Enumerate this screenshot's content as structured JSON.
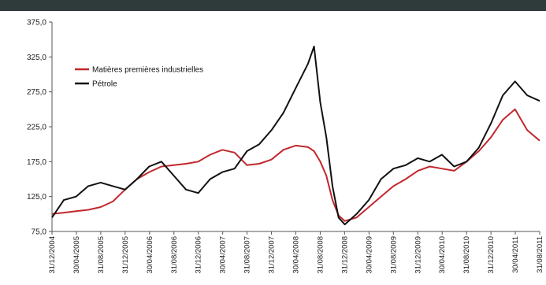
{
  "chart_data": {
    "type": "line",
    "title": "",
    "xlabel": "",
    "ylabel": "",
    "ylim": [
      75,
      375
    ],
    "yticks": [
      75,
      125,
      175,
      225,
      275,
      325,
      375
    ],
    "ytick_labels": [
      "75,0",
      "125,0",
      "175,0",
      "225,0",
      "275,0",
      "325,0",
      "375,0"
    ],
    "xlim": [
      "2004-12-31",
      "2011-08-31"
    ],
    "xtick_labels": [
      "31/12/2004",
      "30/04/2005",
      "31/08/2005",
      "31/12/2005",
      "30/04/2006",
      "31/08/2006",
      "31/12/2006",
      "30/04/2007",
      "31/08/2007",
      "31/12/2007",
      "30/04/2008",
      "31/08/2008",
      "31/12/2008",
      "30/04/2009",
      "31/08/2009",
      "31/12/2009",
      "30/04/2010",
      "31/08/2010",
      "31/12/2010",
      "30/04/2011",
      "31/08/2011"
    ],
    "grid": false,
    "legend": "upper-left",
    "x": [
      "2004-12-31",
      "2005-02-28",
      "2005-04-30",
      "2005-06-30",
      "2005-08-31",
      "2005-10-31",
      "2005-12-31",
      "2006-02-28",
      "2006-04-30",
      "2006-06-30",
      "2006-08-31",
      "2006-10-31",
      "2006-12-31",
      "2007-02-28",
      "2007-04-30",
      "2007-06-30",
      "2007-08-31",
      "2007-10-31",
      "2007-12-31",
      "2008-02-29",
      "2008-04-30",
      "2008-06-30",
      "2008-07-31",
      "2008-08-31",
      "2008-09-30",
      "2008-10-31",
      "2008-11-30",
      "2008-12-31",
      "2009-02-28",
      "2009-04-30",
      "2009-06-30",
      "2009-08-31",
      "2009-10-31",
      "2009-12-31",
      "2010-02-28",
      "2010-04-30",
      "2010-06-30",
      "2010-08-31",
      "2010-10-31",
      "2010-12-31",
      "2011-02-28",
      "2011-04-30",
      "2011-06-30",
      "2011-08-31"
    ],
    "series": [
      {
        "name": "Matières premières industrielles",
        "color": "#c0282d",
        "values": [
          100,
          102,
          104,
          106,
          110,
          118,
          135,
          150,
          160,
          168,
          170,
          172,
          175,
          185,
          192,
          188,
          170,
          172,
          178,
          192,
          198,
          196,
          190,
          175,
          155,
          120,
          98,
          90,
          95,
          110,
          125,
          140,
          150,
          162,
          168,
          165,
          162,
          175,
          190,
          210,
          235,
          250,
          220,
          205
        ]
      },
      {
        "name": "Pétrole",
        "color": "#111111",
        "values": [
          95,
          120,
          125,
          140,
          145,
          140,
          135,
          150,
          168,
          175,
          155,
          135,
          130,
          150,
          160,
          165,
          190,
          200,
          220,
          245,
          280,
          315,
          340,
          260,
          210,
          140,
          95,
          85,
          100,
          120,
          150,
          165,
          170,
          180,
          175,
          185,
          168,
          175,
          195,
          230,
          270,
          290,
          270,
          262
        ]
      }
    ]
  }
}
